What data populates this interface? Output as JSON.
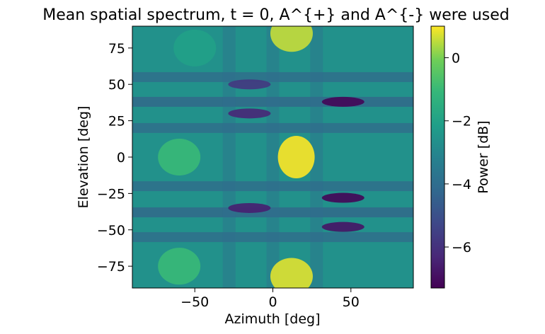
{
  "chart_data": {
    "type": "heatmap",
    "title": "Mean spatial spectrum, t = 0, A^{+} and A^{-} were used",
    "xlabel": "Azimuth [deg]",
    "ylabel": "Elevation [deg]",
    "xlim": [
      -90,
      90
    ],
    "ylim": [
      -90,
      90
    ],
    "xticks": [
      -50,
      0,
      50
    ],
    "yticks": [
      -75,
      -50,
      -25,
      0,
      25,
      50,
      75
    ],
    "colormap": "viridis",
    "colorbar": {
      "label": "Power [dB]",
      "range": [
        -7.3,
        1.0
      ],
      "ticks": [
        -6,
        -4,
        -2,
        0
      ]
    },
    "peaks": [
      {
        "azimuth": 15,
        "elevation": 0,
        "power_db": 1.0
      },
      {
        "azimuth": 12,
        "elevation": 85,
        "power_db": 0.6
      },
      {
        "azimuth": 12,
        "elevation": -82,
        "power_db": 0.8
      },
      {
        "azimuth": -60,
        "elevation": 0,
        "power_db": -1.0
      },
      {
        "azimuth": -60,
        "elevation": -75,
        "power_db": -1.0
      },
      {
        "azimuth": -50,
        "elevation": 75,
        "power_db": -2.0
      }
    ],
    "minima": [
      {
        "azimuth": 45,
        "elevation": 38,
        "power_db": -7.2
      },
      {
        "azimuth": 45,
        "elevation": -28,
        "power_db": -7.2
      },
      {
        "azimuth": 45,
        "elevation": -48,
        "power_db": -6.8
      },
      {
        "azimuth": -15,
        "elevation": -35,
        "power_db": -6.5
      },
      {
        "azimuth": -15,
        "elevation": 30,
        "power_db": -6.3
      },
      {
        "azimuth": -15,
        "elevation": 50,
        "power_db": -5.8
      }
    ]
  }
}
